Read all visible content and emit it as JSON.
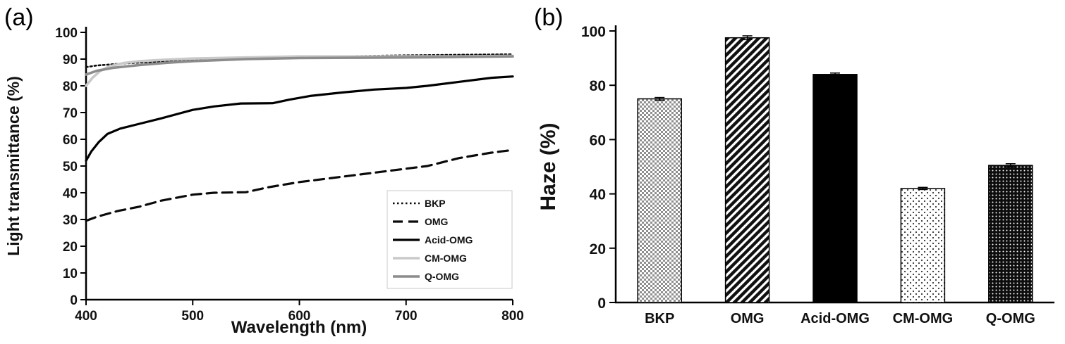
{
  "figure": {
    "panels": [
      {
        "label": "(a)"
      },
      {
        "label": "(b)"
      }
    ]
  },
  "chart_data": [
    {
      "type": "line",
      "panel": "a",
      "title": "",
      "xlabel": "Wavelength (nm)",
      "ylabel": "Light transmittance (%)",
      "xlim": [
        400,
        800
      ],
      "ylim": [
        0,
        100
      ],
      "xticks": [
        400,
        500,
        600,
        700,
        800
      ],
      "yticks": [
        0,
        10,
        20,
        30,
        40,
        50,
        60,
        70,
        80,
        90,
        100
      ],
      "grid": false,
      "legend_position": "lower right",
      "series": [
        {
          "name": "BKP",
          "style": "dotted",
          "color": "#0a0a0a",
          "width": 2.6,
          "x": [
            400,
            410,
            430,
            450,
            500,
            550,
            600,
            650,
            700,
            750,
            800
          ],
          "y": [
            87,
            87.6,
            88.2,
            88.7,
            89.6,
            90.2,
            90.8,
            91.1,
            91.4,
            91.6,
            91.8
          ]
        },
        {
          "name": "OMG",
          "style": "dashed",
          "color": "#0a0a0a",
          "width": 3.2,
          "x": [
            400,
            410,
            430,
            450,
            470,
            500,
            520,
            550,
            570,
            600,
            630,
            660,
            690,
            720,
            750,
            780,
            800
          ],
          "y": [
            29.5,
            31,
            33.2,
            34.8,
            37,
            39.3,
            40,
            40.2,
            42,
            44,
            45.5,
            47,
            48.5,
            50,
            53,
            55,
            56
          ]
        },
        {
          "name": "Acid-OMG",
          "style": "solid",
          "color": "#000000",
          "width": 3.2,
          "x": [
            400,
            405,
            412,
            420,
            432,
            450,
            470,
            500,
            520,
            545,
            575,
            590,
            610,
            640,
            670,
            700,
            720,
            750,
            780,
            800
          ],
          "y": [
            52,
            55.5,
            59,
            62,
            64,
            65.8,
            67.8,
            71,
            72.3,
            73.4,
            73.5,
            74.8,
            76.2,
            77.5,
            78.6,
            79.2,
            80,
            81.5,
            83,
            83.5
          ]
        },
        {
          "name": "CM-OMG",
          "style": "solid",
          "color": "#c9c9c9",
          "width": 3.6,
          "x": [
            400,
            406,
            413,
            422,
            435,
            450,
            475,
            500,
            550,
            600,
            650,
            700,
            750,
            800
          ],
          "y": [
            80,
            83,
            85.5,
            87.3,
            88.5,
            89.2,
            89.8,
            90.2,
            90.6,
            91,
            91,
            91,
            91,
            91.2
          ]
        },
        {
          "name": "Q-OMG",
          "style": "solid",
          "color": "#8c8c8c",
          "width": 3.6,
          "x": [
            400,
            410,
            425,
            450,
            475,
            500,
            550,
            600,
            650,
            700,
            750,
            800
          ],
          "y": [
            84.2,
            85.6,
            86.7,
            87.8,
            88.6,
            89.2,
            90,
            90.4,
            90.5,
            90.6,
            90.8,
            91
          ]
        }
      ]
    },
    {
      "type": "bar",
      "panel": "b",
      "title": "",
      "xlabel": "",
      "ylabel": "Haze (%)",
      "ylim": [
        0,
        100
      ],
      "yticks": [
        0,
        20,
        40,
        60,
        80,
        100
      ],
      "grid": false,
      "categories": [
        "BKP",
        "OMG",
        "Acid-OMG",
        "CM-OMG",
        "Q-OMG"
      ],
      "values": [
        75,
        97.5,
        84,
        42,
        50.5
      ],
      "errors": [
        0.5,
        0.7,
        0.5,
        0.4,
        0.6
      ],
      "patterns": [
        "checker",
        "diagonal",
        "solid",
        "dots",
        "dense"
      ],
      "bar_outline_color": "#000000"
    }
  ]
}
